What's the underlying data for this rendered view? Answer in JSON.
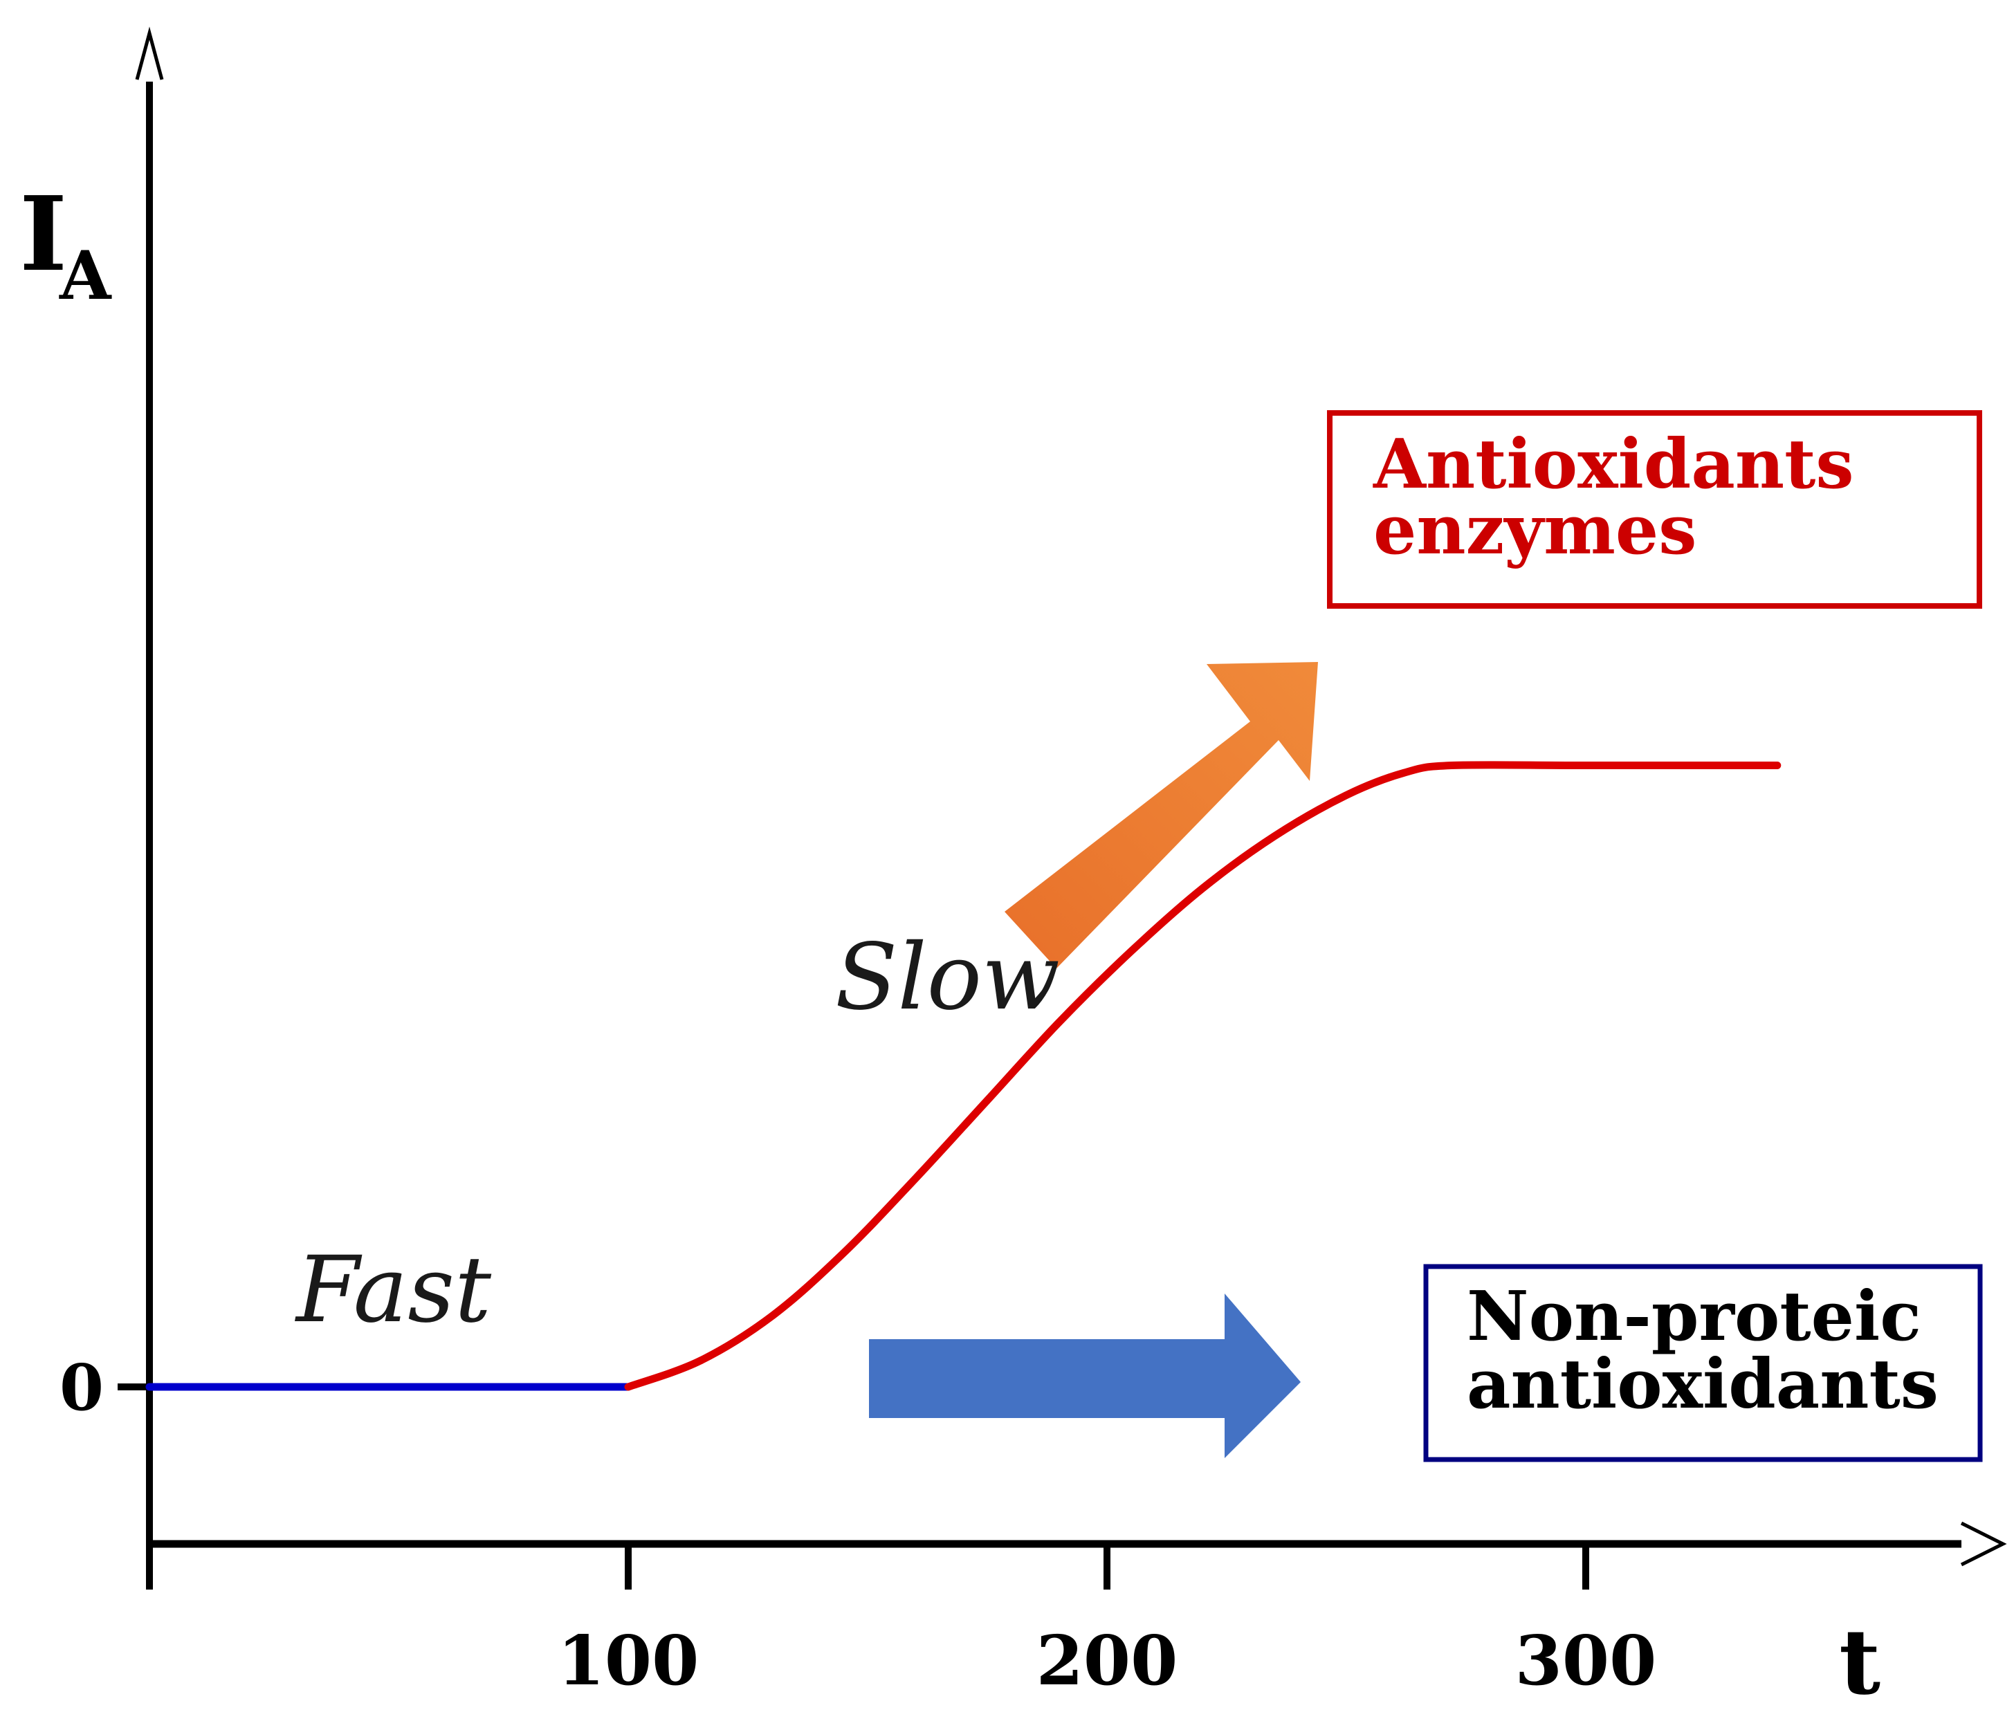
{
  "chart_data": {
    "type": "line",
    "title": "",
    "xlabel": "t",
    "ylabel": "I",
    "ylabel_sub": "A",
    "x_ticks": [
      100,
      200,
      300
    ],
    "y_ticks": [
      0
    ],
    "xlim": [
      0,
      385
    ],
    "ylim": [
      -0.35,
      2.9
    ],
    "series": [
      {
        "name": "",
        "color": "#0000cc",
        "x": [
          0,
          100
        ],
        "y": [
          0,
          0
        ]
      },
      {
        "name": "",
        "color": "#dd0000",
        "x": [
          100,
          115,
          130,
          145,
          160,
          175,
          190,
          205,
          220,
          235,
          250,
          262,
          272,
          300,
          340
        ],
        "y": [
          0,
          0.07,
          0.19,
          0.36,
          0.56,
          0.77,
          0.98,
          1.17,
          1.34,
          1.48,
          1.59,
          1.65,
          1.67,
          1.67,
          1.67
        ]
      }
    ],
    "annotations": {
      "fast": "Fast",
      "slow": "Slow",
      "enzymes_box": [
        "Antioxidants",
        "enzymes"
      ],
      "nonproteic_box": [
        "Non-proteic",
        "antioxidants"
      ]
    },
    "colors": {
      "axis": "#000000",
      "fast_line": "#0000cc",
      "slow_line": "#dd0000",
      "enzymes_box": "#cc0000",
      "nonproteic_box": "#000080",
      "orange_arrow": "#ed7d31",
      "blue_arrow": "#4472c4"
    }
  }
}
